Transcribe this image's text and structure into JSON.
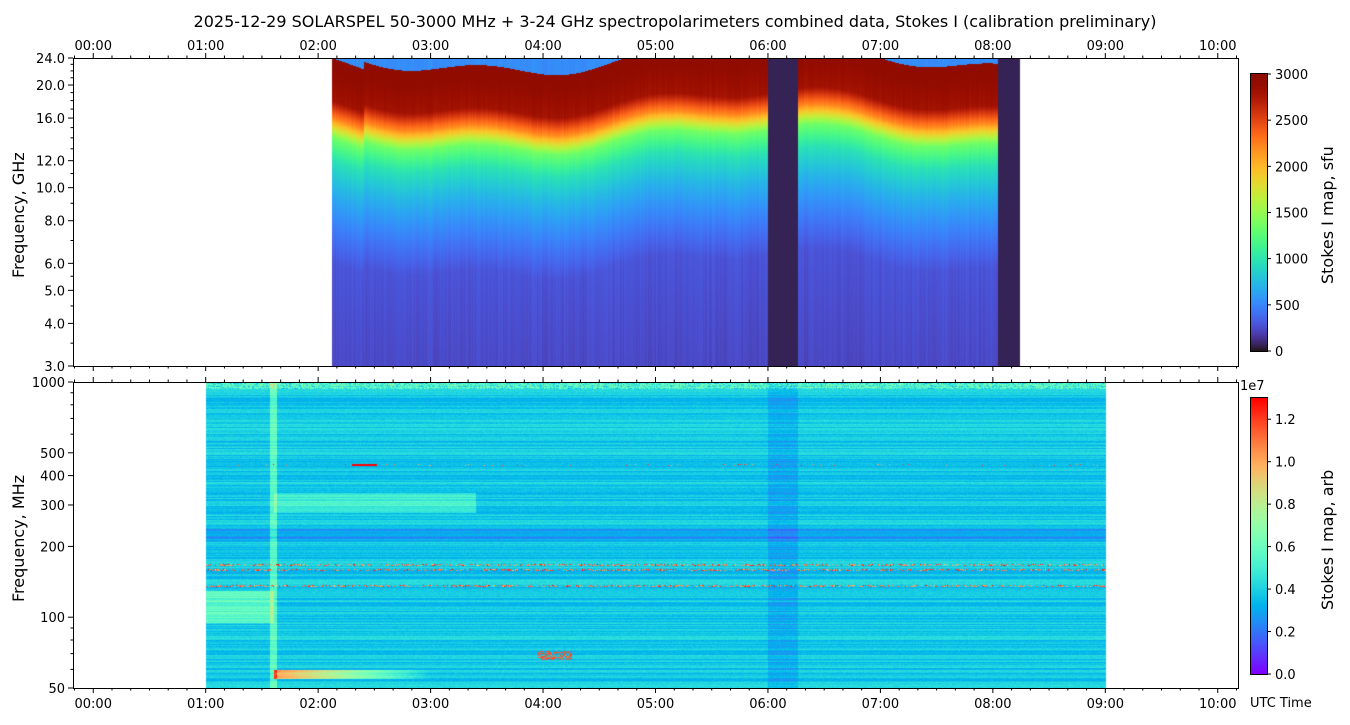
{
  "title": "2025-12-29  SOLARSPEL  50-3000 MHz  +  3-24 GHz  spectropolarimeters combined data,  Stokes I  (calibration preliminary)",
  "xlabel": "UTC Time",
  "chart_data": [
    {
      "type": "heatmap",
      "panel": "top",
      "ylabel": "Frequency, GHz",
      "yscale": "log",
      "ylim": [
        3.0,
        24.0
      ],
      "yticks": [
        3.0,
        4.0,
        5.0,
        6.0,
        8.0,
        10.0,
        12.0,
        16.0,
        20.0,
        24.0
      ],
      "ytick_labels": [
        "3.0",
        "4.0",
        "5.0",
        "6.0",
        "8.0",
        "10.0",
        "12.0",
        "16.0",
        "20.0",
        "24.0"
      ],
      "xlim_hours": [
        -0.18,
        10.18
      ],
      "xtick_labels": [
        "00:00",
        "01:00",
        "02:00",
        "03:00",
        "04:00",
        "05:00",
        "06:00",
        "07:00",
        "08:00",
        "09:00",
        "10:00"
      ],
      "xtick_labels_position": "top",
      "data_time_range_hours": [
        2.12,
        8.24
      ],
      "data_gaps_hours": [
        [
          6.0,
          6.26
        ],
        [
          8.04,
          8.24
        ]
      ],
      "colormap": "turbo",
      "colorbar": {
        "label": "Stokes I map, sfu",
        "range": [
          0,
          3000
        ],
        "ticks": [
          0,
          500,
          1000,
          1500,
          2000,
          2500,
          3000
        ],
        "tick_labels": [
          "0",
          "500",
          "1000",
          "1500",
          "2000",
          "2500",
          "3000"
        ]
      },
      "profile_sfu_by_freq_ghz": {
        "3": 150,
        "6": 200,
        "6.2": 450,
        "10": 650,
        "12": 900,
        "14": 1300,
        "16": 2200,
        "18": 2800,
        "24": 3000
      }
    },
    {
      "type": "heatmap",
      "panel": "bottom",
      "ylabel": "Frequency, MHz",
      "yscale": "log",
      "ylim": [
        50,
        1000
      ],
      "yticks": [
        50,
        100,
        200,
        300,
        400,
        500,
        1000
      ],
      "ytick_labels": [
        "50",
        "100",
        "200",
        "300",
        "400",
        "500",
        "1000"
      ],
      "xlim_hours": [
        -0.18,
        10.18
      ],
      "xtick_labels": [
        "00:00",
        "01:00",
        "02:00",
        "03:00",
        "04:00",
        "05:00",
        "06:00",
        "07:00",
        "08:00",
        "09:00",
        "10:00"
      ],
      "xtick_labels_position": "bottom",
      "data_time_range_hours": [
        1.0,
        9.0
      ],
      "colormap": "rainbow",
      "colorbar": {
        "label": "Stokes I map, arb",
        "exponent_label": "1e7",
        "range": [
          0,
          1.3
        ],
        "ticks": [
          0,
          0.2,
          0.4,
          0.6,
          0.8,
          1.0,
          1.2
        ],
        "tick_labels": [
          "0.0",
          "0.2",
          "0.4",
          "0.6",
          "0.8",
          "1.0",
          "1.2"
        ]
      },
      "interference_bands_mhz": [
        160,
        168,
        137,
        450
      ]
    }
  ]
}
